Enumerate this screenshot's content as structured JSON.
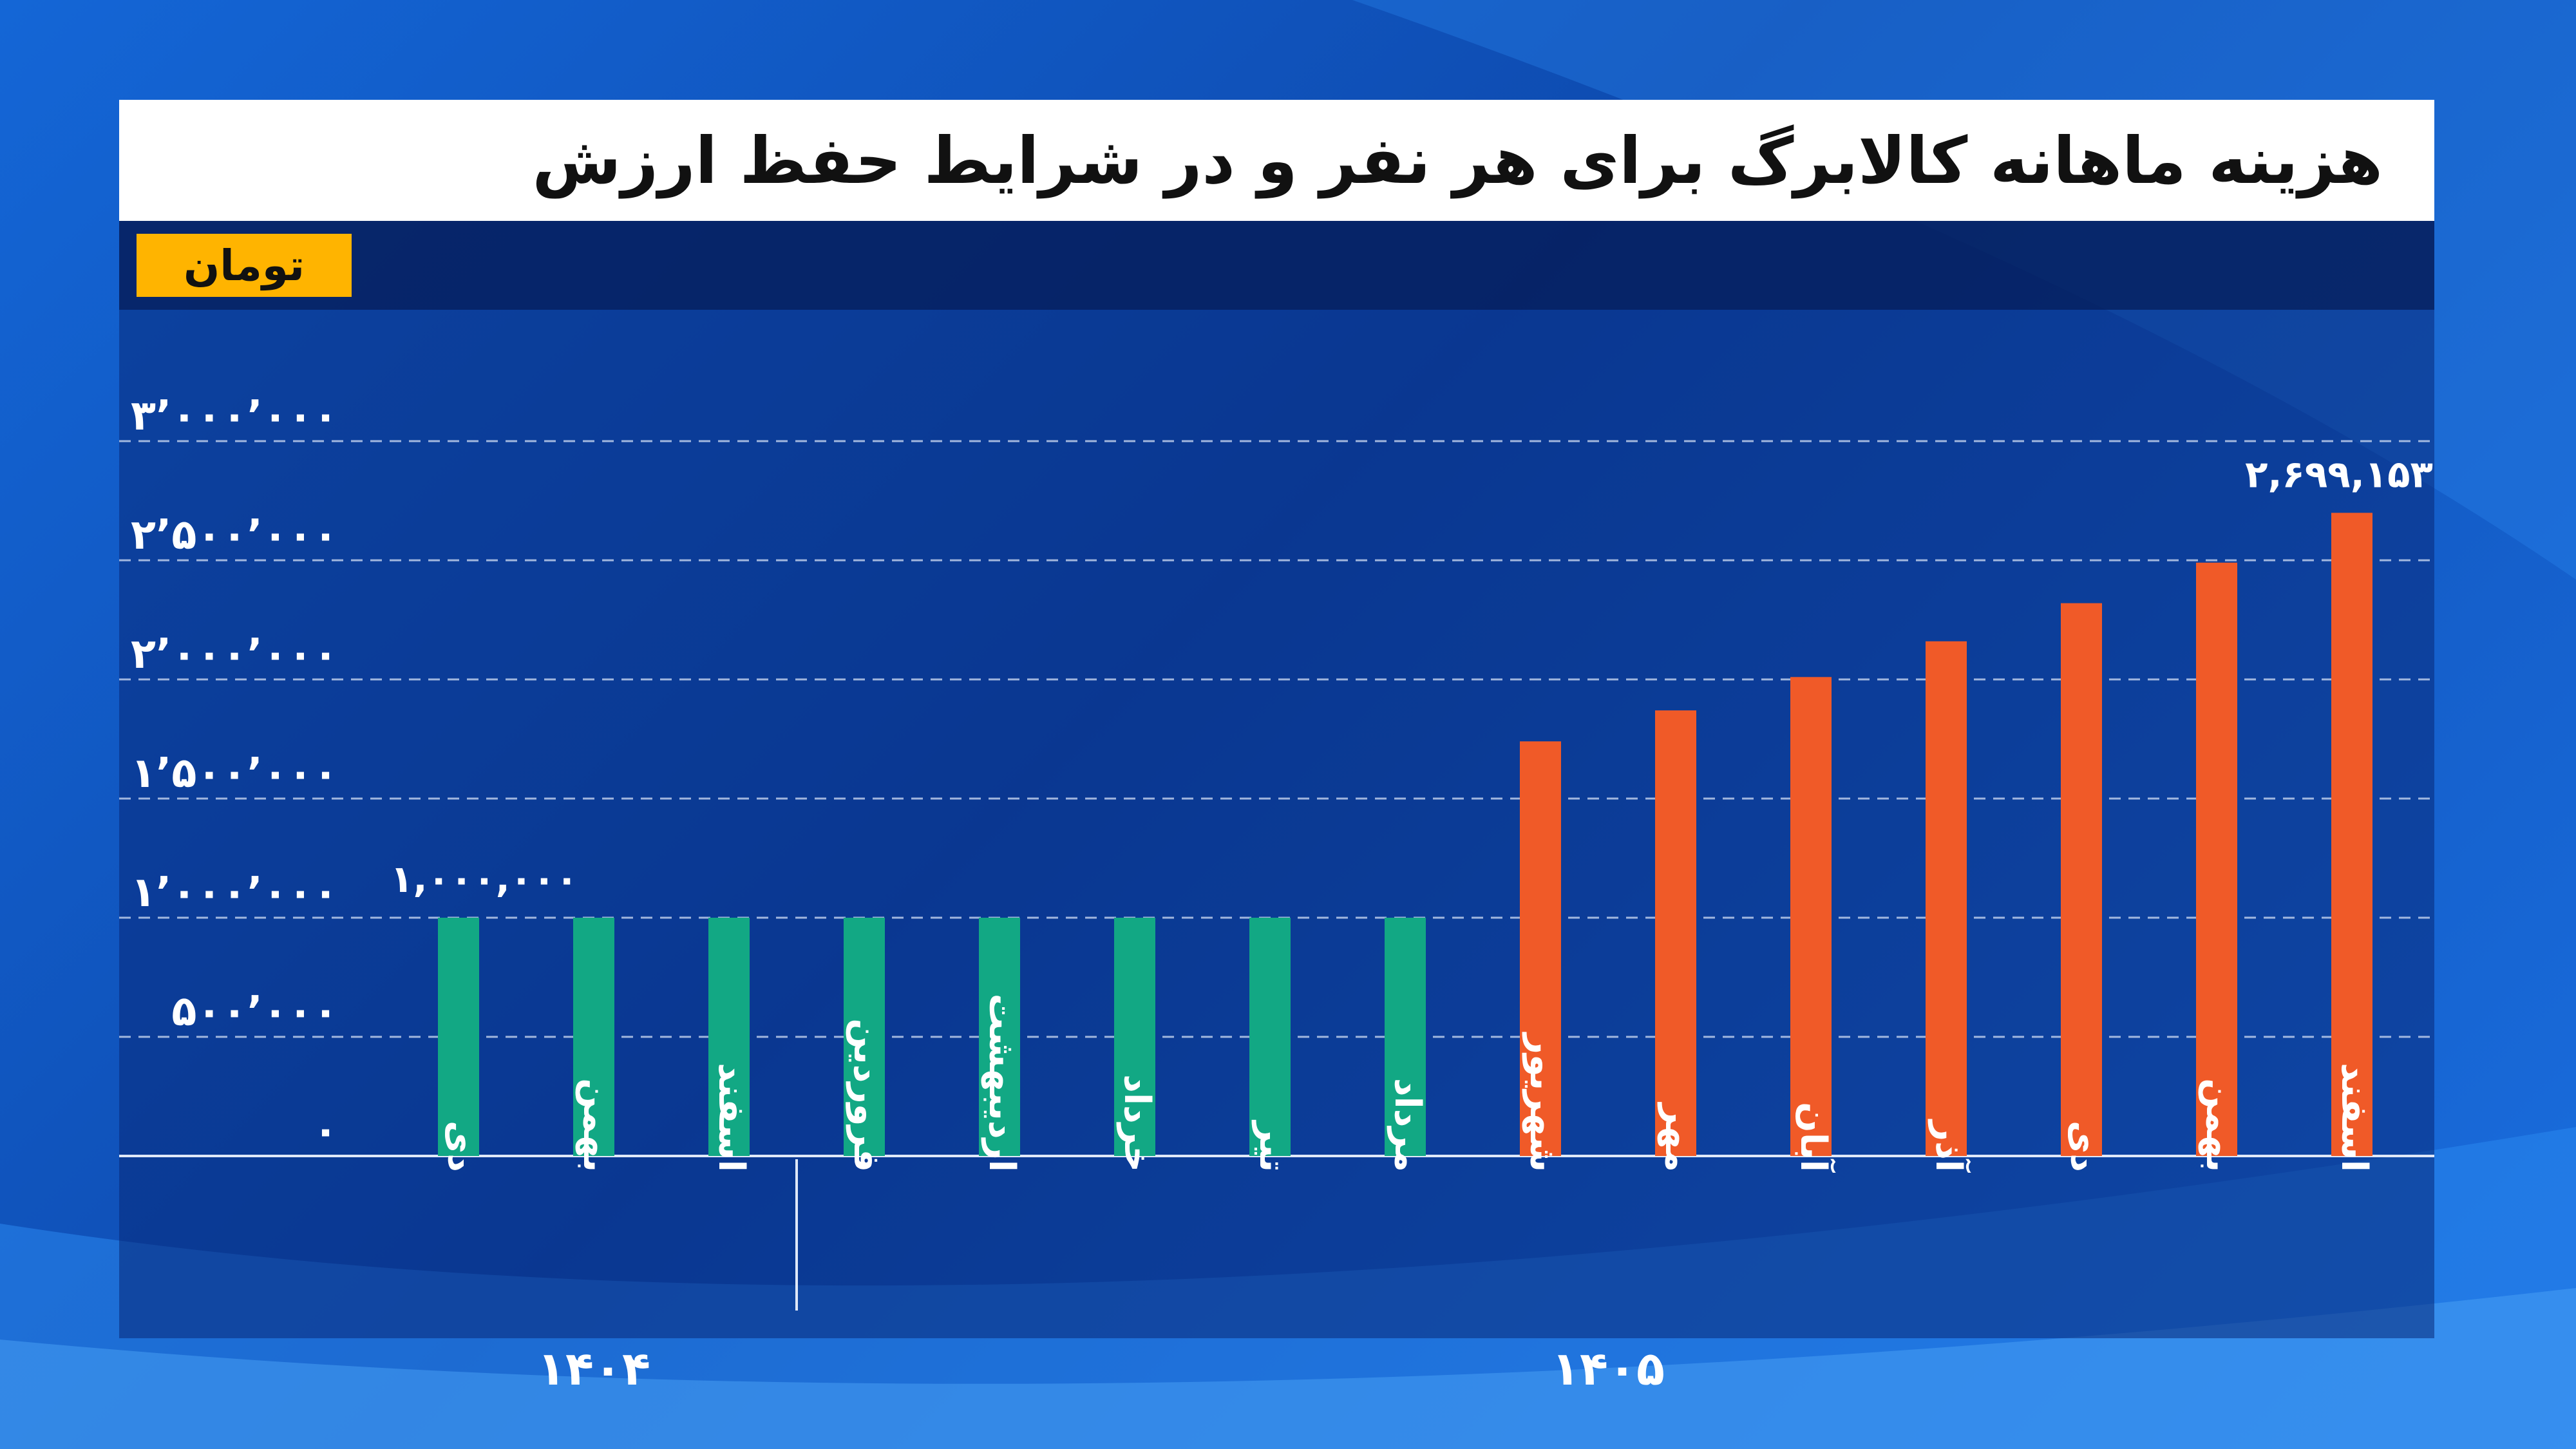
{
  "title": "هزینه ماهانه کالابرگ برای هر نفر و در شرایط حفظ ارزش",
  "unit": "تومان",
  "colors": {
    "green_bar": "#12a884",
    "orange_bar": "#f05a28",
    "title_bg": "#ffffff",
    "unit_badge": "#ffb400"
  },
  "chart_data": {
    "type": "bar",
    "title": "هزینه ماهانه کالابرگ برای هر نفر و در شرایط حفظ ارزش",
    "ylabel": "تومان",
    "ylim": [
      0,
      3000000
    ],
    "yticks": [
      0,
      500000,
      1000000,
      1500000,
      2000000,
      2500000,
      3000000
    ],
    "ytick_labels": [
      "۰",
      "۵۰۰٬۰۰۰",
      "۱٬۰۰۰٬۰۰۰",
      "۱٬۵۰۰٬۰۰۰",
      "۲٬۰۰۰٬۰۰۰",
      "۲٬۵۰۰٬۰۰۰",
      "۳٬۰۰۰٬۰۰۰"
    ],
    "grid": true,
    "categories": [
      "دی",
      "بهمن",
      "اسفند",
      "فروردین",
      "اردیبهشت",
      "خرداد",
      "تیر",
      "مرداد",
      "شهریور",
      "مهر",
      "آبان",
      "آذر",
      "دی",
      "بهمن",
      "اسفند"
    ],
    "values": [
      1000000,
      1000000,
      1000000,
      1000000,
      1000000,
      1000000,
      1000000,
      1000000,
      1740000,
      1870000,
      2010000,
      2160000,
      2320000,
      2490000,
      2699153
    ],
    "bar_colors": [
      "green",
      "green",
      "green",
      "green",
      "green",
      "green",
      "green",
      "green",
      "orange",
      "orange",
      "orange",
      "orange",
      "orange",
      "orange",
      "orange"
    ],
    "data_labels": [
      {
        "index": 0,
        "text": "۱,۰۰۰,۰۰۰"
      },
      {
        "index": 14,
        "text": "۲,۶۹۹,۱۵۳"
      }
    ],
    "groups": [
      {
        "label": "۱۴۰۴",
        "start": 0,
        "end": 2
      },
      {
        "label": "۱۴۰۵",
        "start": 3,
        "end": 14
      }
    ]
  }
}
